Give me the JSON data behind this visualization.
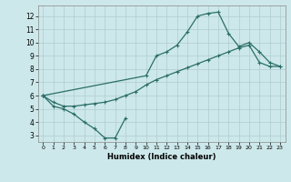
{
  "xlabel": "Humidex (Indice chaleur)",
  "xlim": [
    -0.5,
    23.5
  ],
  "ylim": [
    2.5,
    12.8
  ],
  "xticks": [
    0,
    1,
    2,
    3,
    4,
    5,
    6,
    7,
    8,
    9,
    10,
    11,
    12,
    13,
    14,
    15,
    16,
    17,
    18,
    19,
    20,
    21,
    22,
    23
  ],
  "yticks": [
    3,
    4,
    5,
    6,
    7,
    8,
    9,
    10,
    11,
    12
  ],
  "bg_color": "#cde8ea",
  "line_color": "#2a6e68",
  "grid_color": "#b0ccce",
  "line1_x": [
    0,
    1,
    2,
    3,
    4,
    5,
    6,
    7,
    8
  ],
  "line1_y": [
    6.0,
    5.2,
    5.0,
    4.6,
    4.0,
    3.5,
    2.8,
    2.8,
    4.3
  ],
  "line2_x": [
    0,
    1,
    2,
    3,
    4,
    5,
    6,
    7,
    8,
    9,
    10,
    11,
    12,
    13,
    14,
    15,
    16,
    17,
    18,
    19,
    20,
    21,
    22,
    23
  ],
  "line2_y": [
    6.0,
    5.5,
    5.2,
    5.2,
    5.3,
    5.4,
    5.5,
    5.7,
    6.0,
    6.3,
    6.8,
    7.2,
    7.5,
    7.8,
    8.1,
    8.4,
    8.7,
    9.0,
    9.3,
    9.6,
    9.8,
    8.5,
    8.2,
    8.2
  ],
  "line3_x": [
    0,
    10,
    11,
    12,
    13,
    14,
    15,
    16,
    17,
    18,
    19,
    20,
    21,
    22,
    23
  ],
  "line3_y": [
    6.0,
    7.5,
    9.0,
    9.3,
    9.8,
    10.8,
    12.0,
    12.2,
    12.3,
    10.7,
    9.7,
    10.0,
    9.3,
    8.5,
    8.2
  ]
}
